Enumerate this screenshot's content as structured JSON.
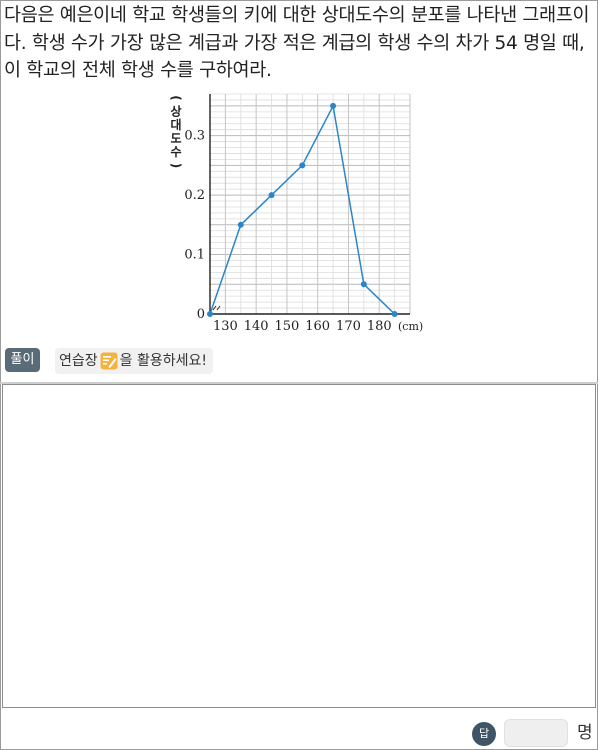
{
  "question": {
    "text": "다음은 예은이네 학교 학생들의 키에 대한 상대도수의 분포를 나타낸 그래프이다. 학생 수가 가장 많은 계급과 가장 적은 계급의 학생 수의 차가 54 명일 때, 이 학교의 전체 학생 수를 구하여라."
  },
  "chart_data": {
    "type": "line",
    "title": "",
    "xlabel": "(cm)",
    "ylabel": "(상대도수)",
    "x_ticks": [
      "130",
      "140",
      "150",
      "160",
      "170",
      "180"
    ],
    "y_ticks": [
      "0.1",
      "0.2",
      "0.3"
    ],
    "origin_label": "0",
    "xlim": [
      125,
      190
    ],
    "ylim": [
      0,
      0.37
    ],
    "grid": true,
    "axis_break": true,
    "series": [
      {
        "x": [
          125,
          135,
          145,
          155,
          165,
          175,
          185
        ],
        "values": [
          0,
          0.15,
          0.2,
          0.25,
          0.35,
          0.05,
          0
        ],
        "color": "#2a86c8"
      }
    ]
  },
  "solution": {
    "badge": "풀이",
    "hint_before": "연습장",
    "hint_after": "을 활용하세요!"
  },
  "answer": {
    "badge": "답",
    "value": "",
    "unit": "명"
  }
}
